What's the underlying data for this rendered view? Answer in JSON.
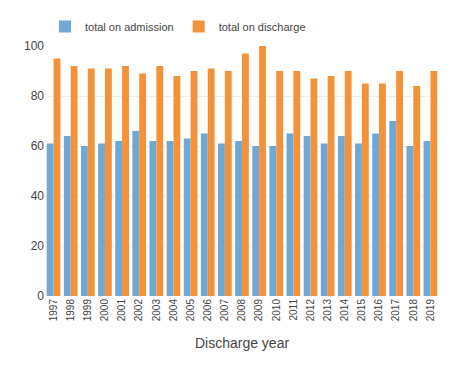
{
  "chart_data": {
    "type": "bar",
    "xlabel": "Discharge year",
    "categories": [
      "1997",
      "1998",
      "1999",
      "2000",
      "2001",
      "2002",
      "2003",
      "2004",
      "2005",
      "2006",
      "2007",
      "2008",
      "2009",
      "2010",
      "2011",
      "2012",
      "2013",
      "2014",
      "2015",
      "2016",
      "2017",
      "2018",
      "2019"
    ],
    "series": [
      {
        "name": "total on admission",
        "color": "#6fa8d5",
        "values": [
          61,
          64,
          60,
          61,
          62,
          66,
          62,
          62,
          63,
          65,
          61,
          62,
          60,
          60,
          65,
          64,
          61,
          64,
          61,
          65,
          70,
          60,
          62
        ]
      },
      {
        "name": "total on discharge",
        "color": "#f4923a",
        "values": [
          95,
          92,
          91,
          91,
          92,
          89,
          92,
          88,
          90,
          91,
          90,
          97,
          100,
          90,
          90,
          87,
          88,
          90,
          85,
          85,
          90,
          84,
          90
        ]
      }
    ],
    "ylim": [
      0,
      100
    ],
    "yticks": [
      0,
      20,
      40,
      60,
      80,
      100
    ],
    "grid": true,
    "legend": "upper left"
  }
}
